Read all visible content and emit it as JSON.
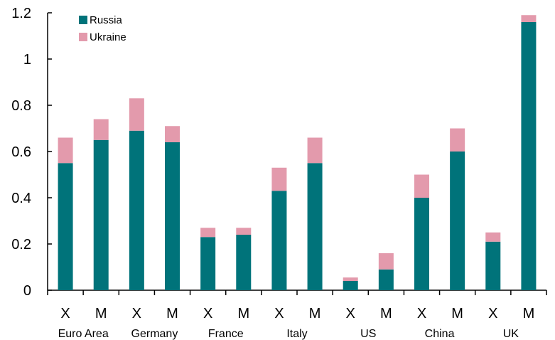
{
  "chart_data": {
    "type": "bar",
    "stacked": true,
    "title": "",
    "xlabel": "",
    "ylabel": "",
    "ylim": [
      0,
      1.2
    ],
    "yticks": [
      "0",
      "0.2",
      "0.4",
      "0.6",
      "0.8",
      "1",
      "1.2"
    ],
    "grid": false,
    "legend_position": "top-left",
    "categories": [
      "X",
      "M",
      "X",
      "M",
      "X",
      "M",
      "X",
      "M",
      "X",
      "M",
      "X",
      "M",
      "X",
      "M"
    ],
    "groups": [
      "Euro Area",
      "Germany",
      "France",
      "Italy",
      "US",
      "China",
      "UK"
    ],
    "series": [
      {
        "name": "Russia",
        "color": "#00737a",
        "values": [
          0.55,
          0.65,
          0.69,
          0.64,
          0.23,
          0.24,
          0.43,
          0.55,
          0.04,
          0.09,
          0.4,
          0.6,
          0.21,
          1.16
        ]
      },
      {
        "name": "Ukraine",
        "color": "#e39aac",
        "values": [
          0.11,
          0.09,
          0.14,
          0.07,
          0.04,
          0.03,
          0.1,
          0.11,
          0.015,
          0.07,
          0.1,
          0.1,
          0.04,
          0.03
        ]
      }
    ]
  }
}
